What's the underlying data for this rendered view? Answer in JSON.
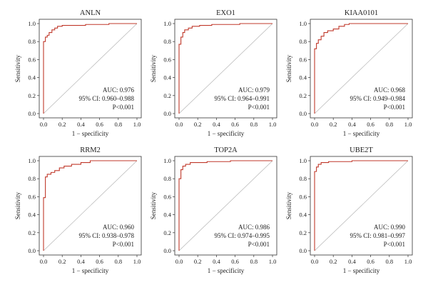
{
  "chart_data": [
    {
      "type": "line",
      "title": "ANLN",
      "xlabel": "1 − specificity",
      "ylabel": "Sensitivity",
      "xlim": [
        0,
        1
      ],
      "ylim": [
        0,
        1
      ],
      "xticks": [
        "0.0",
        "0.2",
        "0.4",
        "0.6",
        "0.8",
        "1.0"
      ],
      "yticks": [
        "0.0",
        "0.2",
        "0.4",
        "0.6",
        "0.8",
        "1.0"
      ],
      "annotations": [
        "AUC: 0.976",
        "95% CI: 0.960–0.988",
        "P<0.001"
      ],
      "series": [
        {
          "color": "#c0392b",
          "points": [
            [
              0,
              0
            ],
            [
              0,
              0.8
            ],
            [
              0.02,
              0.8
            ],
            [
              0.02,
              0.85
            ],
            [
              0.04,
              0.85
            ],
            [
              0.04,
              0.87
            ],
            [
              0.06,
              0.87
            ],
            [
              0.06,
              0.9
            ],
            [
              0.09,
              0.9
            ],
            [
              0.09,
              0.93
            ],
            [
              0.12,
              0.93
            ],
            [
              0.12,
              0.95
            ],
            [
              0.15,
              0.95
            ],
            [
              0.15,
              0.97
            ],
            [
              0.2,
              0.97
            ],
            [
              0.2,
              0.98
            ],
            [
              0.45,
              0.98
            ],
            [
              0.45,
              0.99
            ],
            [
              0.7,
              0.99
            ],
            [
              0.7,
              1
            ],
            [
              1,
              1
            ]
          ]
        }
      ],
      "diagonal": true
    },
    {
      "type": "line",
      "title": "EXO1",
      "xlabel": "1 − specificity",
      "ylabel": "Sensitivity",
      "xlim": [
        0,
        1
      ],
      "ylim": [
        0,
        1
      ],
      "xticks": [
        "0.0",
        "0.2",
        "0.4",
        "0.6",
        "0.8",
        "1.0"
      ],
      "yticks": [
        "0.0",
        "0.2",
        "0.4",
        "0.6",
        "0.8",
        "1.0"
      ],
      "annotations": [
        "AUC: 0.979",
        "95% CI: 0.964–0.991",
        "P<0.001"
      ],
      "series": [
        {
          "color": "#c0392b",
          "points": [
            [
              0,
              0
            ],
            [
              0,
              0.77
            ],
            [
              0.02,
              0.77
            ],
            [
              0.02,
              0.85
            ],
            [
              0.04,
              0.85
            ],
            [
              0.04,
              0.9
            ],
            [
              0.06,
              0.9
            ],
            [
              0.06,
              0.93
            ],
            [
              0.1,
              0.93
            ],
            [
              0.1,
              0.95
            ],
            [
              0.14,
              0.95
            ],
            [
              0.14,
              0.97
            ],
            [
              0.22,
              0.97
            ],
            [
              0.22,
              0.98
            ],
            [
              0.35,
              0.98
            ],
            [
              0.35,
              0.99
            ],
            [
              0.65,
              0.99
            ],
            [
              0.65,
              1
            ],
            [
              1,
              1
            ]
          ]
        }
      ],
      "diagonal": true
    },
    {
      "type": "line",
      "title": "KIAA0101",
      "xlabel": "1 − specificity",
      "ylabel": "Sensitivity",
      "xlim": [
        0,
        1
      ],
      "ylim": [
        0,
        1
      ],
      "xticks": [
        "0.0",
        "0.2",
        "0.4",
        "0.6",
        "0.8",
        "1.0"
      ],
      "yticks": [
        "0.0",
        "0.2",
        "0.4",
        "0.6",
        "0.8",
        "1.0"
      ],
      "annotations": [
        "AUC: 0.968",
        "95% CI: 0.949–0.984",
        "P<0.001"
      ],
      "series": [
        {
          "color": "#c0392b",
          "points": [
            [
              0,
              0
            ],
            [
              0,
              0.72
            ],
            [
              0.02,
              0.72
            ],
            [
              0.02,
              0.78
            ],
            [
              0.04,
              0.78
            ],
            [
              0.04,
              0.82
            ],
            [
              0.07,
              0.82
            ],
            [
              0.07,
              0.86
            ],
            [
              0.1,
              0.86
            ],
            [
              0.1,
              0.9
            ],
            [
              0.14,
              0.9
            ],
            [
              0.14,
              0.92
            ],
            [
              0.2,
              0.92
            ],
            [
              0.2,
              0.94
            ],
            [
              0.26,
              0.94
            ],
            [
              0.26,
              0.97
            ],
            [
              0.32,
              0.97
            ],
            [
              0.32,
              0.99
            ],
            [
              0.37,
              0.99
            ],
            [
              0.37,
              1
            ],
            [
              1,
              1
            ]
          ]
        }
      ],
      "diagonal": true
    },
    {
      "type": "line",
      "title": "RRM2",
      "xlabel": "1 − specificity",
      "ylabel": "Sensitivity",
      "xlim": [
        0,
        1
      ],
      "ylim": [
        0,
        1
      ],
      "xticks": [
        "0.0",
        "0.2",
        "0.4",
        "0.6",
        "0.8",
        "1.0"
      ],
      "yticks": [
        "0.0",
        "0.2",
        "0.4",
        "0.6",
        "0.8",
        "1.0"
      ],
      "annotations": [
        "AUC: 0.960",
        "95% CI: 0.938–0.978",
        "P<0.001"
      ],
      "series": [
        {
          "color": "#c0392b",
          "points": [
            [
              0,
              0
            ],
            [
              0,
              0.59
            ],
            [
              0.02,
              0.59
            ],
            [
              0.02,
              0.82
            ],
            [
              0.04,
              0.82
            ],
            [
              0.04,
              0.85
            ],
            [
              0.08,
              0.85
            ],
            [
              0.08,
              0.87
            ],
            [
              0.12,
              0.87
            ],
            [
              0.12,
              0.89
            ],
            [
              0.17,
              0.89
            ],
            [
              0.17,
              0.92
            ],
            [
              0.22,
              0.92
            ],
            [
              0.22,
              0.94
            ],
            [
              0.3,
              0.94
            ],
            [
              0.3,
              0.96
            ],
            [
              0.4,
              0.96
            ],
            [
              0.4,
              0.98
            ],
            [
              0.5,
              0.98
            ],
            [
              0.5,
              1
            ],
            [
              1,
              1
            ]
          ]
        }
      ],
      "diagonal": true
    },
    {
      "type": "line",
      "title": "TOP2A",
      "xlabel": "1 − specificity",
      "ylabel": "Sensitivity",
      "xlim": [
        0,
        1
      ],
      "ylim": [
        0,
        1
      ],
      "xticks": [
        "0.0",
        "0.2",
        "0.4",
        "0.6",
        "0.8",
        "1.0"
      ],
      "yticks": [
        "0.0",
        "0.2",
        "0.4",
        "0.6",
        "0.8",
        "1.0"
      ],
      "annotations": [
        "AUC: 0.986",
        "95% CI: 0.974–0.995",
        "P<0.001"
      ],
      "series": [
        {
          "color": "#c0392b",
          "points": [
            [
              0,
              0
            ],
            [
              0,
              0.8
            ],
            [
              0.02,
              0.8
            ],
            [
              0.02,
              0.9
            ],
            [
              0.04,
              0.9
            ],
            [
              0.04,
              0.94
            ],
            [
              0.07,
              0.94
            ],
            [
              0.07,
              0.96
            ],
            [
              0.12,
              0.96
            ],
            [
              0.12,
              0.98
            ],
            [
              0.3,
              0.98
            ],
            [
              0.3,
              0.99
            ],
            [
              0.55,
              0.99
            ],
            [
              0.55,
              1
            ],
            [
              1,
              1
            ]
          ]
        }
      ],
      "diagonal": true
    },
    {
      "type": "line",
      "title": "UBE2T",
      "xlabel": "1 − specificity",
      "ylabel": "Sensitivity",
      "xlim": [
        0,
        1
      ],
      "ylim": [
        0,
        1
      ],
      "xticks": [
        "0.0",
        "0.2",
        "0.4",
        "0.6",
        "0.8",
        "1.0"
      ],
      "yticks": [
        "0.0",
        "0.2",
        "0.4",
        "0.6",
        "0.8",
        "1.0"
      ],
      "annotations": [
        "AUC: 0.990",
        "95% CI: 0.981–0.997",
        "P<0.001"
      ],
      "series": [
        {
          "color": "#c0392b",
          "points": [
            [
              0,
              0
            ],
            [
              0,
              0.88
            ],
            [
              0.02,
              0.88
            ],
            [
              0.02,
              0.93
            ],
            [
              0.04,
              0.93
            ],
            [
              0.04,
              0.96
            ],
            [
              0.07,
              0.96
            ],
            [
              0.07,
              0.98
            ],
            [
              0.15,
              0.98
            ],
            [
              0.15,
              0.99
            ],
            [
              0.4,
              0.99
            ],
            [
              0.4,
              1
            ],
            [
              1,
              1
            ]
          ]
        }
      ],
      "diagonal": true
    }
  ]
}
